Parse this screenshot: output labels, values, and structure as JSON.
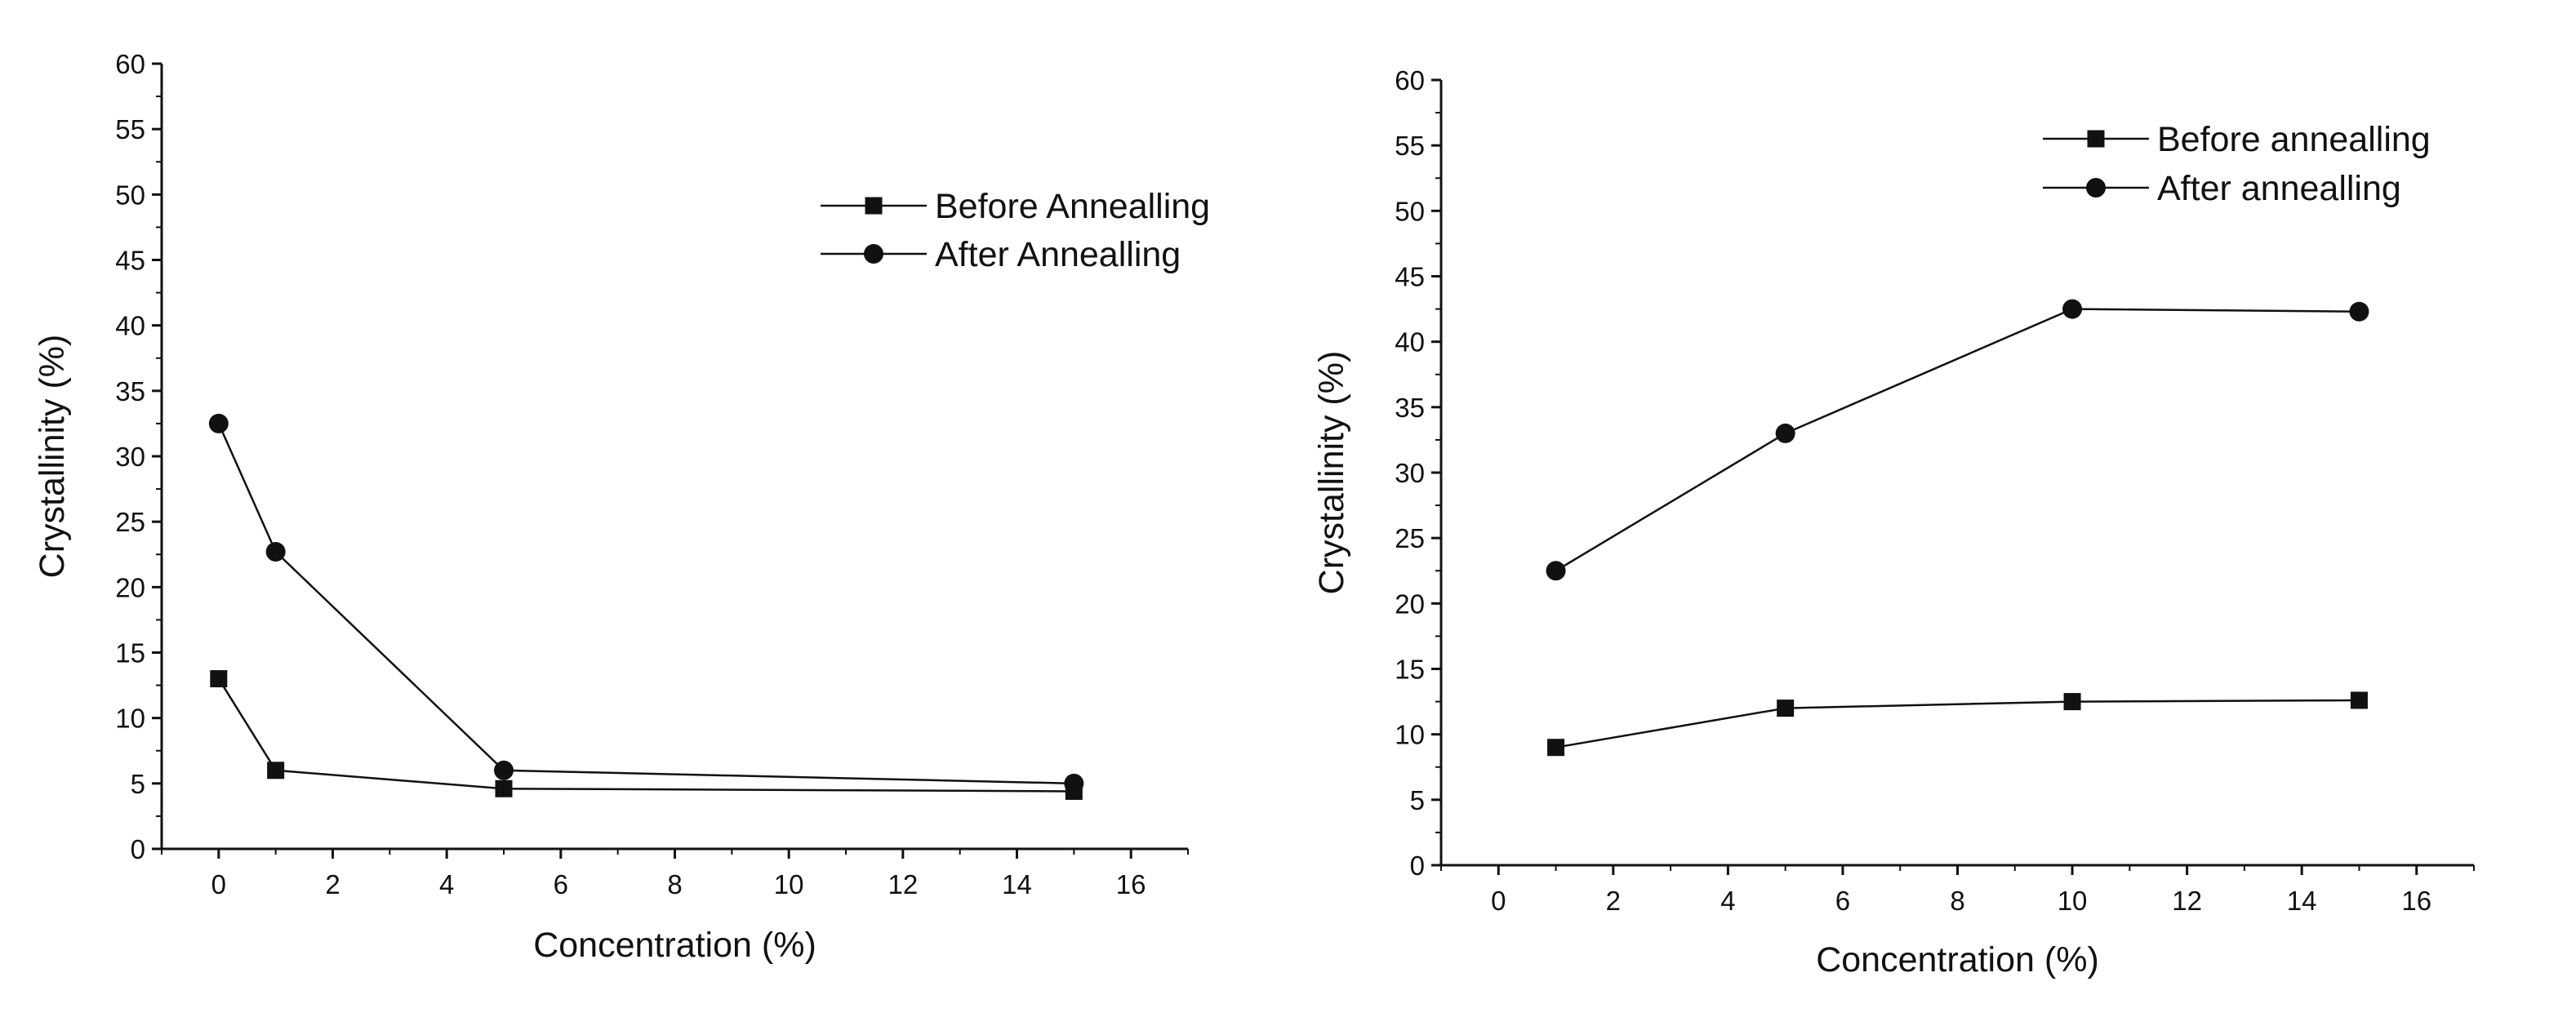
{
  "chart_data": [
    {
      "type": "line",
      "title": "",
      "xlabel": "Concentration (%)",
      "ylabel": "Crystallinity (%)",
      "xlim": [
        -1,
        17
      ],
      "ylim": [
        0,
        60
      ],
      "xticks": [
        0,
        2,
        4,
        6,
        8,
        10,
        12,
        14,
        16
      ],
      "yticks": [
        0,
        5,
        10,
        15,
        20,
        25,
        30,
        35,
        40,
        45,
        50,
        55,
        60
      ],
      "grid": false,
      "legend": "top-right",
      "series": [
        {
          "name": "Before Annealling",
          "marker": "square",
          "x": [
            0,
            1,
            5,
            15
          ],
          "y": [
            13,
            6,
            4.6,
            4.4
          ]
        },
        {
          "name": "After Annealling",
          "marker": "circle",
          "x": [
            0,
            1,
            5,
            15
          ],
          "y": [
            32.5,
            22.7,
            6,
            5
          ]
        }
      ]
    },
    {
      "type": "line",
      "title": "",
      "xlabel": "Concentration (%)",
      "ylabel": "Crystallinity (%)",
      "xlim": [
        -1,
        17
      ],
      "ylim": [
        0,
        60
      ],
      "xticks": [
        0,
        2,
        4,
        6,
        8,
        10,
        12,
        14,
        16
      ],
      "yticks": [
        0,
        5,
        10,
        15,
        20,
        25,
        30,
        35,
        40,
        45,
        50,
        55,
        60
      ],
      "grid": false,
      "legend": "top-right",
      "series": [
        {
          "name": "Before annealling",
          "marker": "square",
          "x": [
            1,
            5,
            10,
            15
          ],
          "y": [
            9,
            12,
            12.5,
            12.6
          ]
        },
        {
          "name": "After annealling",
          "marker": "circle",
          "x": [
            1,
            5,
            10,
            15
          ],
          "y": [
            22.5,
            33,
            42.5,
            42.3
          ]
        }
      ]
    }
  ]
}
